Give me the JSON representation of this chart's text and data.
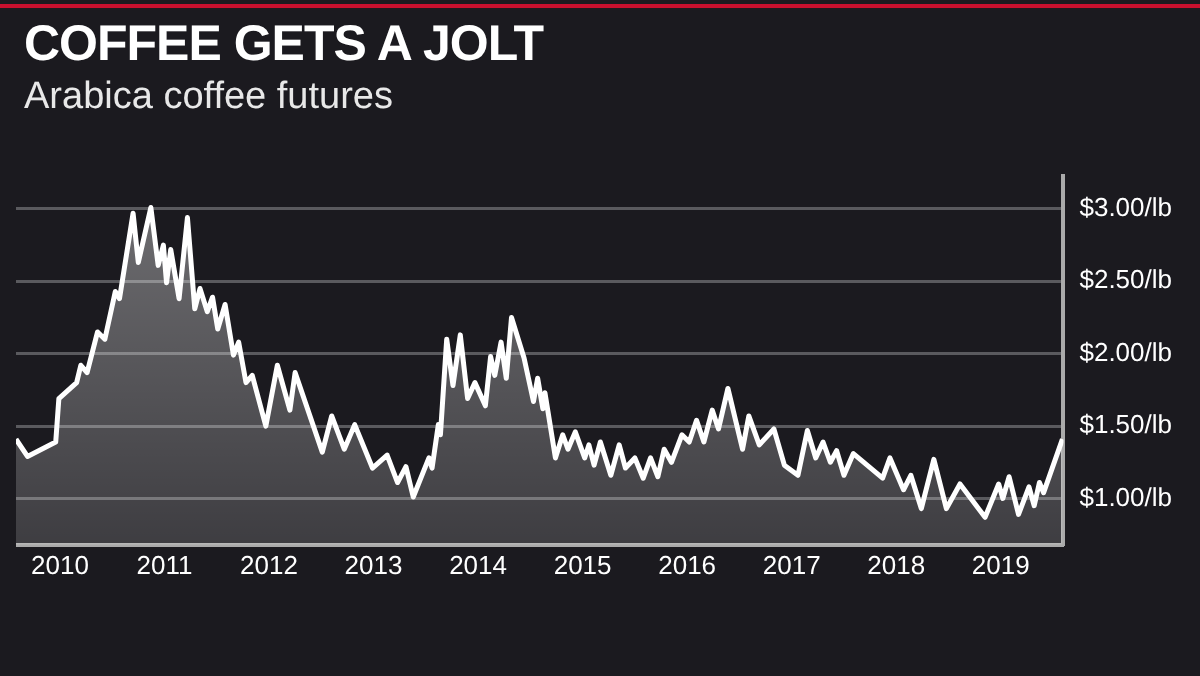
{
  "chart_data": {
    "type": "area",
    "title": "COFFEE GETS A JOLT",
    "subtitle": "Arabica coffee futures",
    "series": [
      {
        "color": "#ffffff",
        "x": [
          2009.58,
          2009.69,
          2009.96,
          2009.99,
          2010.16,
          2010.2,
          2010.26,
          2010.36,
          2010.43,
          2010.53,
          2010.57,
          2010.7,
          2010.75,
          2010.87,
          2010.94,
          2010.99,
          2011.02,
          2011.06,
          2011.14,
          2011.22,
          2011.29,
          2011.34,
          2011.41,
          2011.46,
          2011.51,
          2011.58,
          2011.66,
          2011.71,
          2011.78,
          2011.84,
          2011.97,
          2012.08,
          2012.2,
          2012.25,
          2012.51,
          2012.6,
          2012.72,
          2012.82,
          2012.99,
          2013.13,
          2013.23,
          2013.31,
          2013.38,
          2013.53,
          2013.56,
          2013.62,
          2013.64,
          2013.7,
          2013.76,
          2013.83,
          2013.9,
          2013.97,
          2014.07,
          2014.12,
          2014.16,
          2014.22,
          2014.27,
          2014.32,
          2014.44,
          2014.53,
          2014.57,
          2014.62,
          2014.64,
          2014.74,
          2014.81,
          2014.86,
          2014.93,
          2015.02,
          2015.06,
          2015.11,
          2015.17,
          2015.27,
          2015.35,
          2015.41,
          2015.5,
          2015.58,
          2015.65,
          2015.72,
          2015.78,
          2015.85,
          2015.95,
          2016.02,
          2016.09,
          2016.16,
          2016.24,
          2016.3,
          2016.39,
          2016.53,
          2016.59,
          2016.69,
          2016.83,
          2016.93,
          2017.06,
          2017.15,
          2017.23,
          2017.3,
          2017.37,
          2017.43,
          2017.5,
          2017.59,
          2017.87,
          2017.94,
          2018.07,
          2018.14,
          2018.24,
          2018.36,
          2018.48,
          2018.61,
          2018.85,
          2018.98,
          2019.02,
          2019.08,
          2019.17,
          2019.27,
          2019.32,
          2019.37,
          2019.41,
          2019.59
        ],
        "values": [
          1.41,
          1.29,
          1.39,
          1.69,
          1.8,
          1.92,
          1.87,
          2.15,
          2.1,
          2.43,
          2.38,
          2.97,
          2.63,
          3.01,
          2.61,
          2.75,
          2.49,
          2.72,
          2.38,
          2.94,
          2.31,
          2.45,
          2.29,
          2.39,
          2.17,
          2.34,
          1.99,
          2.08,
          1.8,
          1.85,
          1.5,
          1.92,
          1.61,
          1.87,
          1.32,
          1.57,
          1.34,
          1.51,
          1.21,
          1.3,
          1.11,
          1.22,
          1.01,
          1.28,
          1.21,
          1.51,
          1.44,
          2.1,
          1.78,
          2.13,
          1.69,
          1.8,
          1.64,
          1.98,
          1.85,
          2.08,
          1.83,
          2.25,
          1.97,
          1.67,
          1.83,
          1.62,
          1.73,
          1.28,
          1.44,
          1.34,
          1.46,
          1.28,
          1.37,
          1.23,
          1.39,
          1.16,
          1.37,
          1.21,
          1.28,
          1.14,
          1.28,
          1.15,
          1.34,
          1.25,
          1.44,
          1.39,
          1.54,
          1.39,
          1.61,
          1.48,
          1.76,
          1.34,
          1.57,
          1.37,
          1.48,
          1.23,
          1.16,
          1.47,
          1.28,
          1.39,
          1.25,
          1.33,
          1.16,
          1.31,
          1.14,
          1.28,
          1.06,
          1.16,
          0.93,
          1.27,
          0.93,
          1.1,
          0.87,
          1.1,
          1.0,
          1.15,
          0.89,
          1.08,
          0.95,
          1.11,
          1.04,
          1.41
        ]
      }
    ],
    "xlim": [
      2009.58,
      2019.6
    ],
    "xticks": [
      2010,
      2011,
      2012,
      2013,
      2014,
      2015,
      2016,
      2017,
      2018,
      2019
    ],
    "ylim": [
      0.68,
      3.23
    ],
    "yticks": [
      {
        "value": 1,
        "label": "$1.00/lb"
      },
      {
        "value": 1.5,
        "label": "$1.50/lb"
      },
      {
        "value": 2,
        "label": "$2.00/lb"
      },
      {
        "value": 2.5,
        "label": "$2.50/lb"
      },
      {
        "value": 3,
        "label": "$3.00/lb"
      }
    ],
    "grid": "y",
    "legend": false,
    "marker": "none",
    "line_style": "solid"
  }
}
